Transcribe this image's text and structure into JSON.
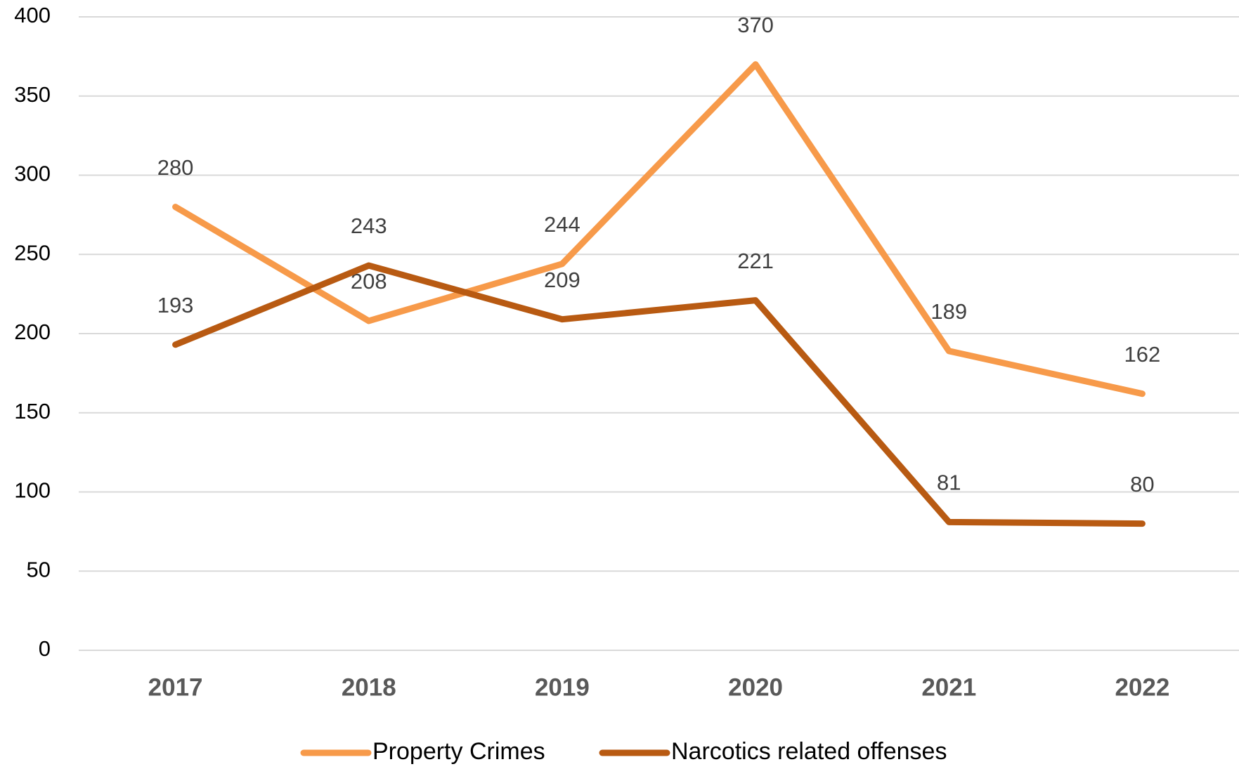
{
  "chart_data": {
    "type": "line",
    "categories": [
      "2017",
      "2018",
      "2019",
      "2020",
      "2021",
      "2022"
    ],
    "series": [
      {
        "name": "Property Crimes",
        "color": "#f79a4a",
        "values": [
          280,
          208,
          244,
          370,
          189,
          162
        ]
      },
      {
        "name": "Narcotics related offenses",
        "color": "#b85a12",
        "values": [
          193,
          243,
          209,
          221,
          81,
          80
        ]
      }
    ],
    "ylim": [
      0,
      400
    ],
    "yticks": [
      0,
      50,
      100,
      150,
      200,
      250,
      300,
      350,
      400
    ],
    "grid": true,
    "legend": "bottom",
    "data_labels": true
  }
}
